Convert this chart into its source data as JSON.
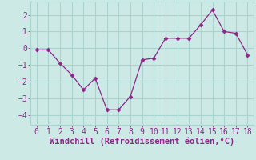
{
  "x": [
    0,
    1,
    2,
    3,
    4,
    5,
    6,
    7,
    8,
    9,
    10,
    11,
    12,
    13,
    14,
    15,
    16,
    17,
    18
  ],
  "y": [
    -0.1,
    -0.1,
    -0.9,
    -1.6,
    -2.5,
    -1.8,
    -3.7,
    -3.7,
    -2.9,
    -0.7,
    -0.6,
    0.6,
    0.6,
    0.6,
    1.4,
    2.3,
    1.0,
    0.9,
    -0.4
  ],
  "line_color": "#8b2888",
  "marker": "D",
  "marker_size": 2.5,
  "bg_color": "#cce9e5",
  "grid_color": "#aad4cf",
  "xlabel": "Windchill (Refroidissement éolien,°C)",
  "xlabel_color": "#8b2888",
  "xlabel_fontsize": 7.5,
  "tick_color": "#8b2888",
  "tick_fontsize": 7,
  "xlim": [
    -0.5,
    18.5
  ],
  "ylim": [
    -4.6,
    2.8
  ],
  "yticks": [
    -4,
    -3,
    -2,
    -1,
    0,
    1,
    2
  ],
  "xticks": [
    0,
    1,
    2,
    3,
    4,
    5,
    6,
    7,
    8,
    9,
    10,
    11,
    12,
    13,
    14,
    15,
    16,
    17,
    18
  ]
}
